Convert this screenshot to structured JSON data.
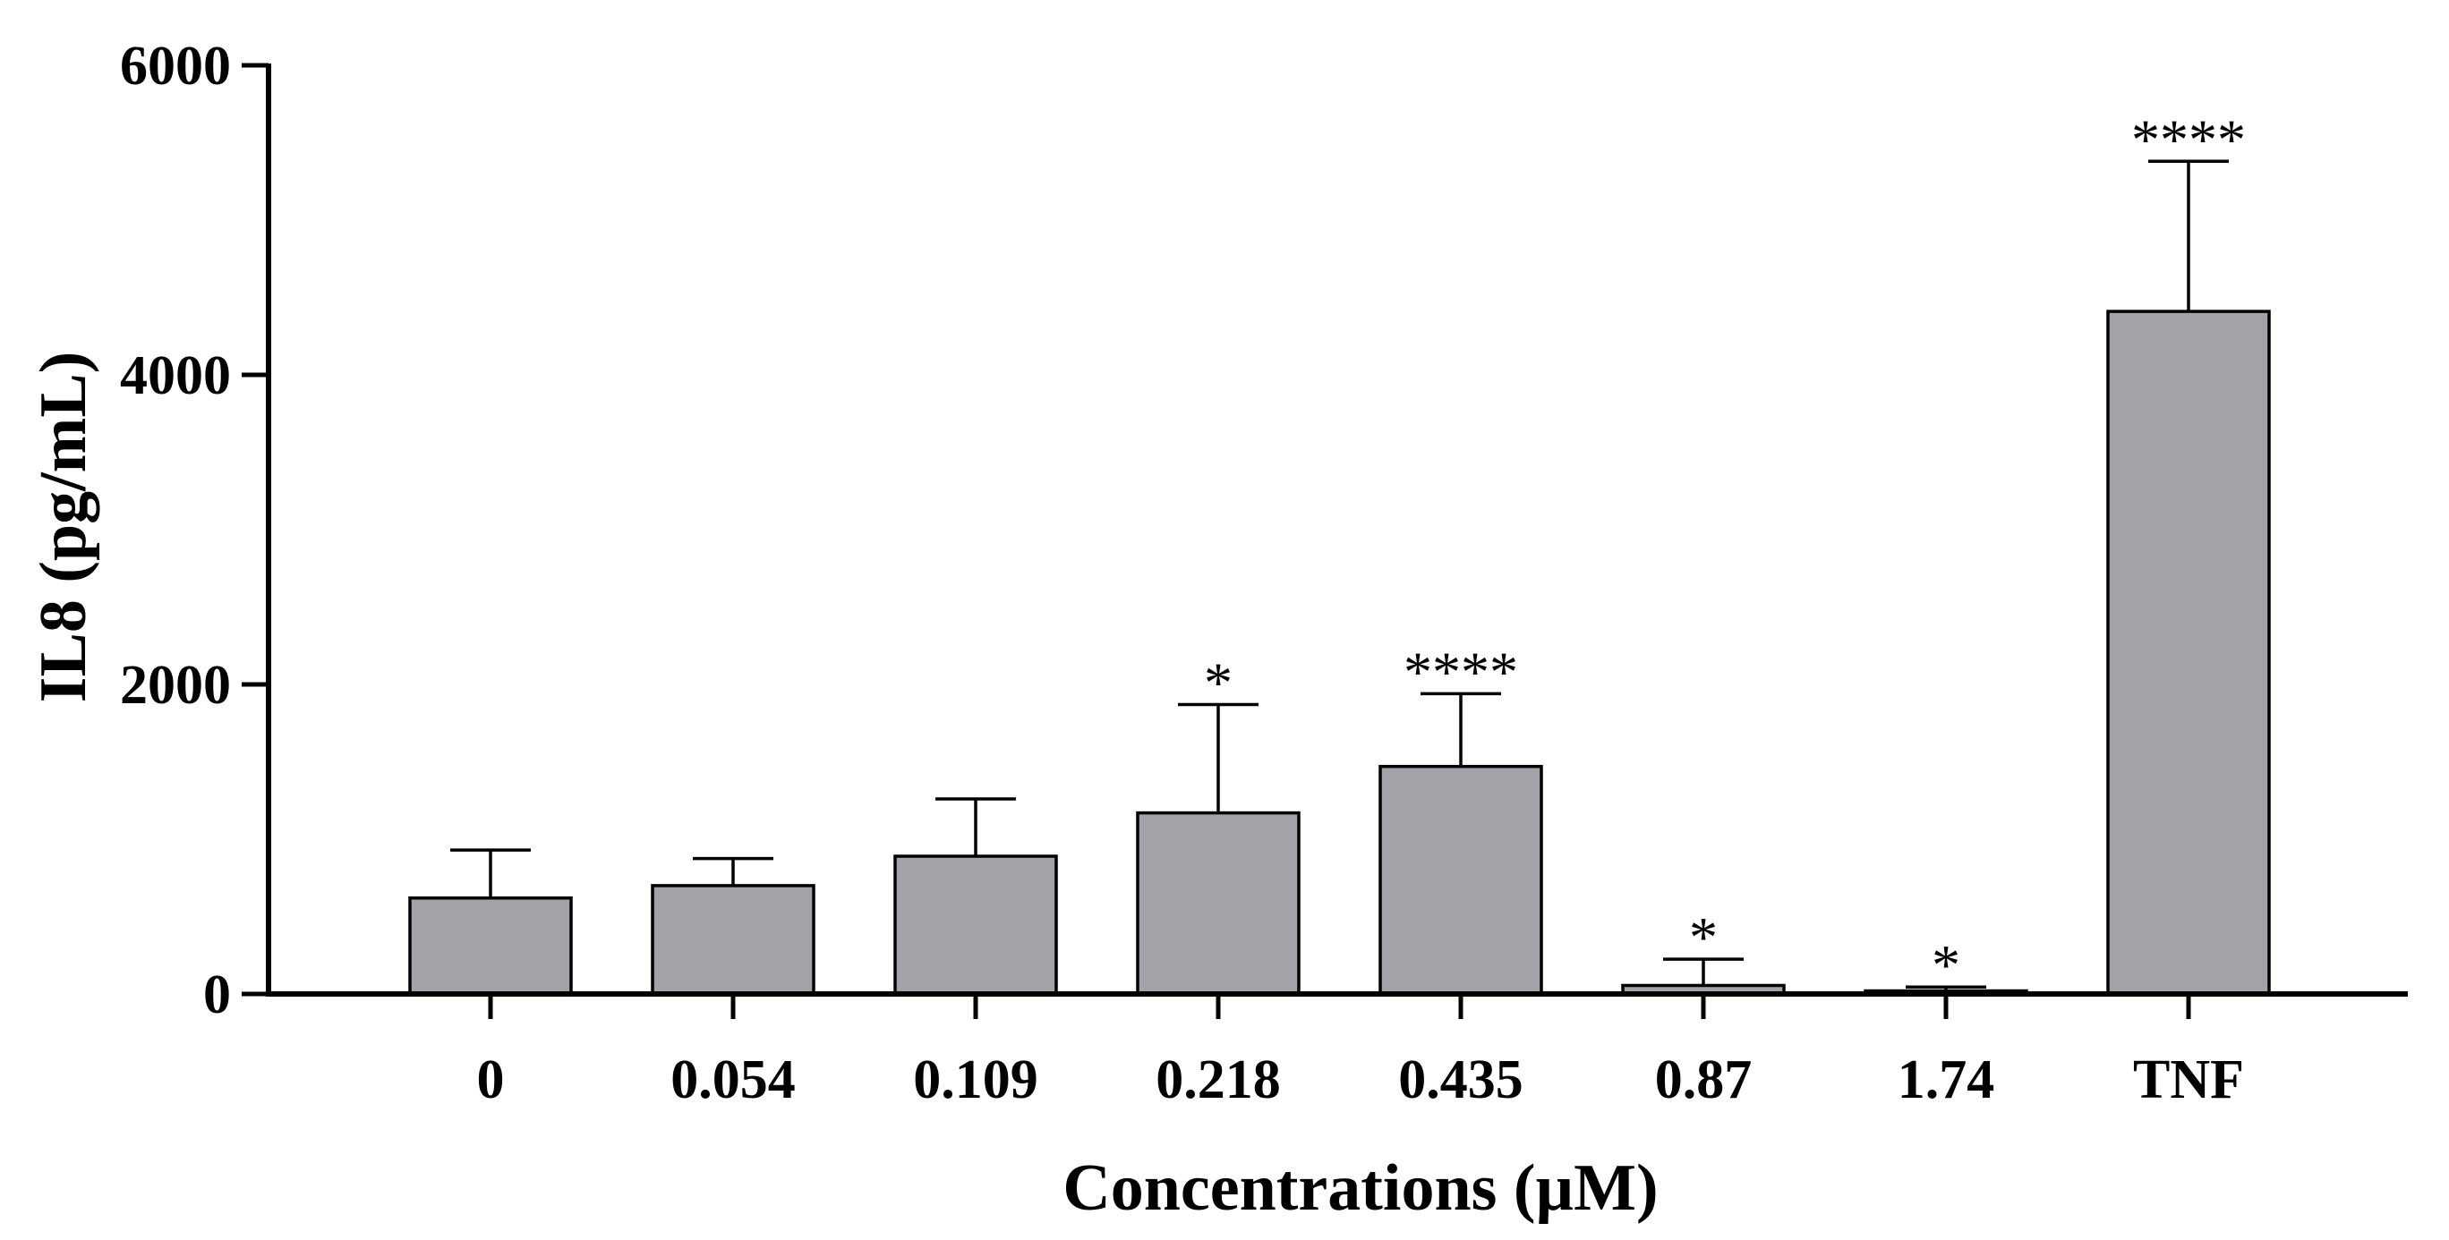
{
  "chart_data": {
    "type": "bar",
    "title": "",
    "xlabel": "Concentrations (µM)",
    "ylabel": "IL8 (pg/mL)",
    "ylim": [
      0,
      6000
    ],
    "yticks": [
      0,
      2000,
      4000,
      6000
    ],
    "ytick_labels": [
      "0",
      "2000",
      "4000",
      "6000"
    ],
    "categories": [
      "0",
      "0.054",
      "0.109",
      "0.218",
      "0.435",
      "0.87",
      "1.74",
      "TNF"
    ],
    "values": [
      620,
      700,
      890,
      1170,
      1470,
      55,
      20,
      4410
    ],
    "error": [
      310,
      175,
      370,
      700,
      470,
      170,
      25,
      970
    ],
    "significance": [
      "",
      "",
      "",
      "*",
      "****",
      "*",
      "*",
      "****"
    ],
    "grid": false,
    "legend": "none",
    "bar_color": "#a3a2a8",
    "edge_color": "#000000"
  }
}
